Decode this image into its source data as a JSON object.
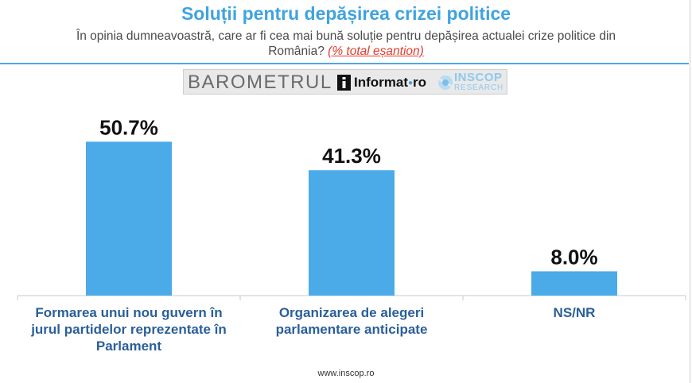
{
  "header": {
    "title": "Soluții pentru depășirea crizei politice",
    "subtitle": "În opinia dumneavoastră, care ar fi cea mai bună soluție pentru depășirea actualei crize politice din România?",
    "subtitle_note": "(% total eșantion)"
  },
  "logo": {
    "barometer": "BAROMETRUL",
    "informat": "Informat",
    "informat_suffix": "ro",
    "inscop_top": "INSCOP",
    "inscop_bottom": "RESEARCH"
  },
  "footer": {
    "url": "www.inscop.ro"
  },
  "colors": {
    "bar": "#4aabe8",
    "title": "#3fa3e0",
    "category_label": "#2a5f9a",
    "note": "#e23b2e"
  },
  "chart_data": {
    "type": "bar",
    "categories": [
      "Formarea unui nou guvern în jurul partidelor reprezentate în Parlament",
      "Organizarea de alegeri parlamentare anticipate",
      "NS/NR"
    ],
    "category_lines": [
      [
        "Formarea unui nou guvern în",
        "jurul partidelor reprezentate în",
        "Parlament"
      ],
      [
        "Organizarea de alegeri",
        "parlamentare anticipate"
      ],
      [
        "NS/NR"
      ]
    ],
    "values": [
      50.7,
      41.3,
      8.0
    ],
    "data_labels": [
      "50.7%",
      "41.3%",
      "8.0%"
    ],
    "ylim": [
      0,
      60
    ],
    "grid": false,
    "legend": "none"
  }
}
